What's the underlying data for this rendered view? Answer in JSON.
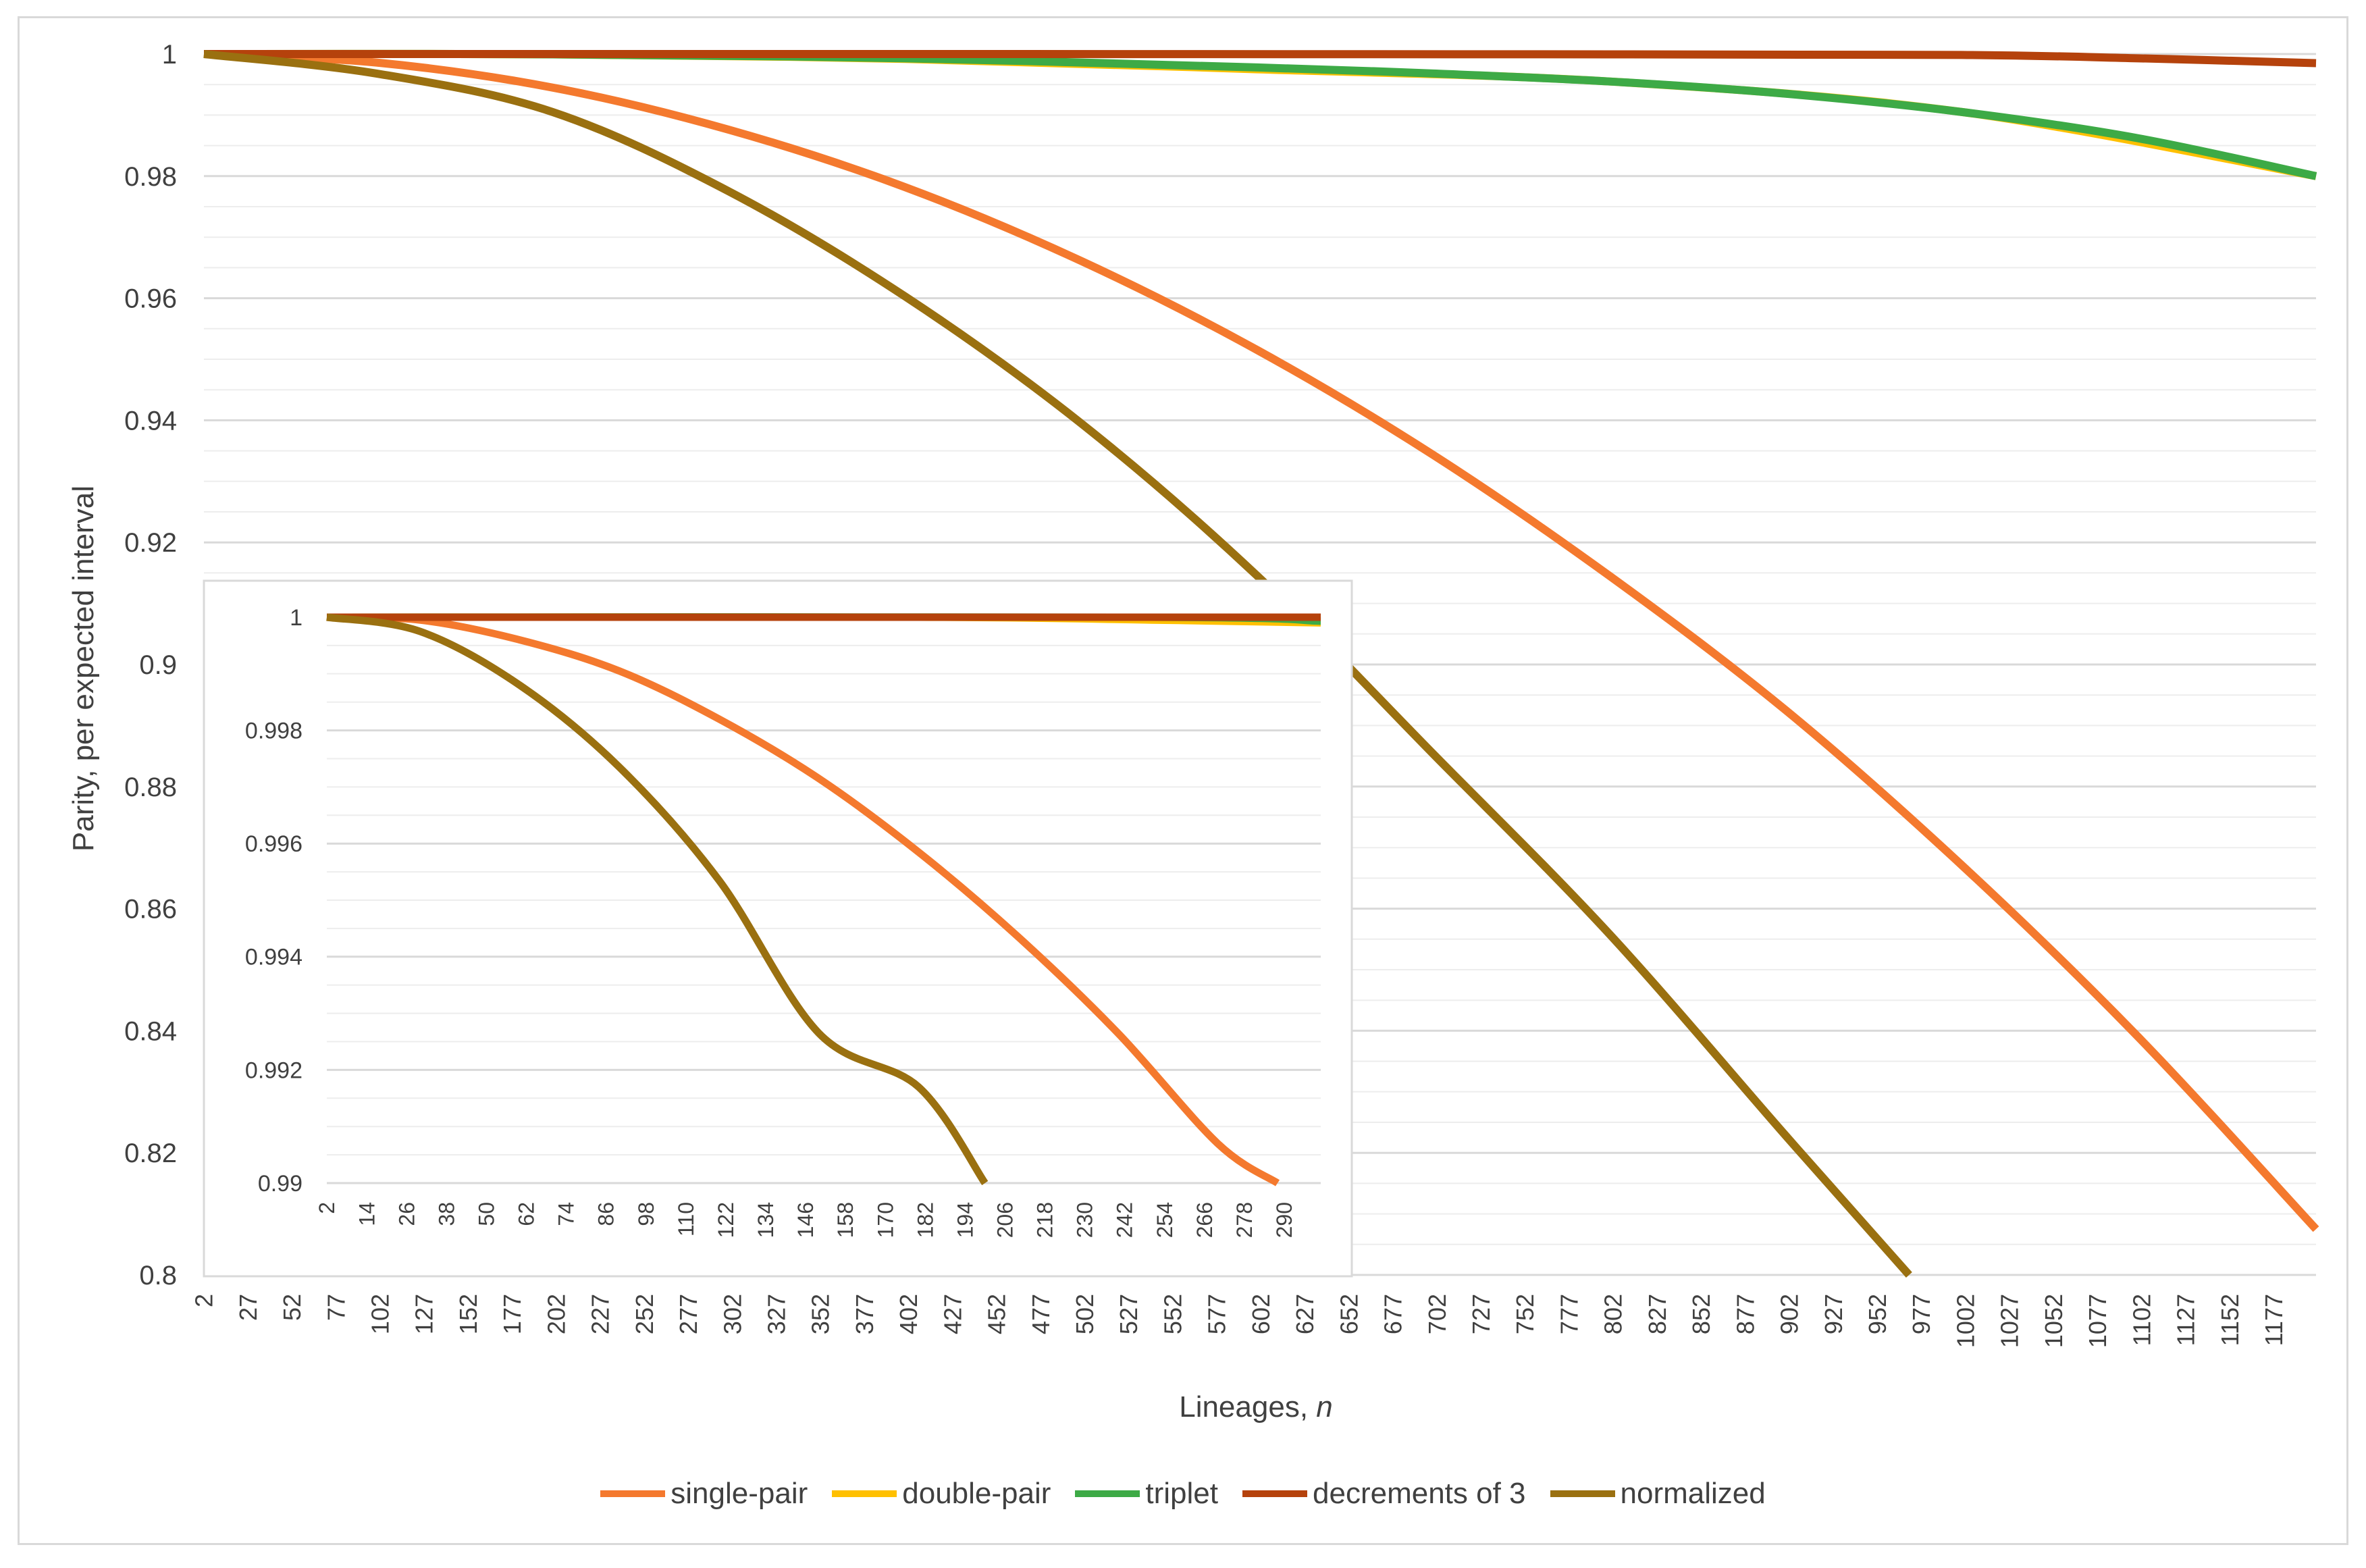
{
  "chart_data": [
    {
      "type": "line",
      "ylabel": "Parity, per expected interval",
      "xlabel": "Lineages, ",
      "xlabel_italic": "n",
      "ylim": [
        0.8,
        1.0
      ],
      "xlim": [
        2,
        1201
      ],
      "y_ticks": [
        "0.8",
        "0.82",
        "0.84",
        "0.86",
        "0.88",
        "0.9",
        "0.92",
        "0.94",
        "0.96",
        "0.98",
        "1"
      ],
      "x_ticks": [
        "2",
        "27",
        "52",
        "77",
        "102",
        "127",
        "152",
        "177",
        "202",
        "227",
        "252",
        "277",
        "302",
        "327",
        "352",
        "377",
        "402",
        "427",
        "452",
        "477",
        "502",
        "527",
        "552",
        "577",
        "602",
        "627",
        "652",
        "677",
        "702",
        "727",
        "752",
        "777",
        "802",
        "827",
        "852",
        "877",
        "902",
        "927",
        "952",
        "977",
        "1002",
        "1027",
        "1052",
        "1077",
        "1102",
        "1127",
        "1152",
        "1177"
      ],
      "gridlines": "major and minor horizontal",
      "legend_position": "bottom",
      "series": [
        {
          "name": "single-pair",
          "color": "#f4792e",
          "x": [
            2,
            100,
            200,
            300,
            400,
            500,
            600,
            700,
            800,
            900,
            1000,
            1100,
            1201
          ],
          "y": [
            1.0,
            0.9986,
            0.9945,
            0.9876,
            0.9782,
            0.9661,
            0.9515,
            0.9343,
            0.9145,
            0.8925,
            0.8671,
            0.839,
            0.8075
          ]
        },
        {
          "name": "double-pair",
          "color": "#ffc000",
          "x": [
            2,
            200,
            400,
            600,
            800,
            1000,
            1201
          ],
          "y": [
            1.0,
            0.99995,
            0.9992,
            0.9975,
            0.9955,
            0.9905,
            0.98
          ]
        },
        {
          "name": "triplet",
          "color": "#3daa46",
          "x": [
            2,
            200,
            400,
            600,
            700,
            800,
            900,
            1000,
            1100,
            1201
          ],
          "y": [
            1.0,
            0.99995,
            0.9993,
            0.9978,
            0.9968,
            0.9955,
            0.9935,
            0.9905,
            0.9862,
            0.98
          ]
        },
        {
          "name": "decrements of 3",
          "color": "#b5420c",
          "x": [
            2,
            400,
            800,
            1000,
            1100,
            1201
          ],
          "y": [
            1.0,
            1.0,
            0.99995,
            0.99985,
            0.9993,
            0.9985
          ]
        },
        {
          "name": "normalized",
          "color": "#9a7010",
          "x": [
            2,
            100,
            200,
            300,
            400,
            500,
            600,
            700,
            800,
            900,
            970
          ],
          "y": [
            1.0,
            0.9968,
            0.9905,
            0.9775,
            0.9603,
            0.9395,
            0.9145,
            0.8853,
            0.8558,
            0.8228,
            0.8
          ]
        }
      ]
    },
    {
      "type": "line",
      "ylim": [
        0.99,
        1.0
      ],
      "xlim": [
        2,
        301
      ],
      "y_ticks": [
        "0.99",
        "0.992",
        "0.994",
        "0.996",
        "0.998",
        "1"
      ],
      "x_ticks": [
        "2",
        "14",
        "26",
        "38",
        "50",
        "62",
        "74",
        "86",
        "98",
        "110",
        "122",
        "134",
        "146",
        "158",
        "170",
        "182",
        "194",
        "206",
        "218",
        "230",
        "242",
        "254",
        "266",
        "278",
        "290"
      ],
      "gridlines": "major and minor horizontal",
      "series": [
        {
          "name": "single-pair",
          "color": "#f4792e",
          "x": [
            2,
            30,
            60,
            90,
            120,
            150,
            180,
            210,
            240,
            270,
            288
          ],
          "y": [
            1.0,
            0.99995,
            0.9996,
            0.99905,
            0.9982,
            0.99715,
            0.99585,
            0.99435,
            0.99265,
            0.9907,
            0.99
          ]
        },
        {
          "name": "double-pair",
          "color": "#ffc000",
          "x": [
            2,
            180,
            250,
            301
          ],
          "y": [
            1.0,
            1.0,
            0.99995,
            0.9999
          ]
        },
        {
          "name": "triplet",
          "color": "#3daa46",
          "x": [
            2,
            250,
            301
          ],
          "y": [
            1.0,
            1.0,
            0.99993
          ]
        },
        {
          "name": "decrements of 3",
          "color": "#b5420c",
          "x": [
            2,
            301
          ],
          "y": [
            1.0,
            1.0
          ]
        },
        {
          "name": "normalized",
          "color": "#9a7010",
          "x": [
            2,
            30,
            60,
            90,
            120,
            150,
            180,
            200
          ],
          "y": [
            1.0,
            0.99975,
            0.9988,
            0.99735,
            0.99535,
            0.99265,
            0.9917,
            0.99
          ]
        }
      ]
    }
  ]
}
